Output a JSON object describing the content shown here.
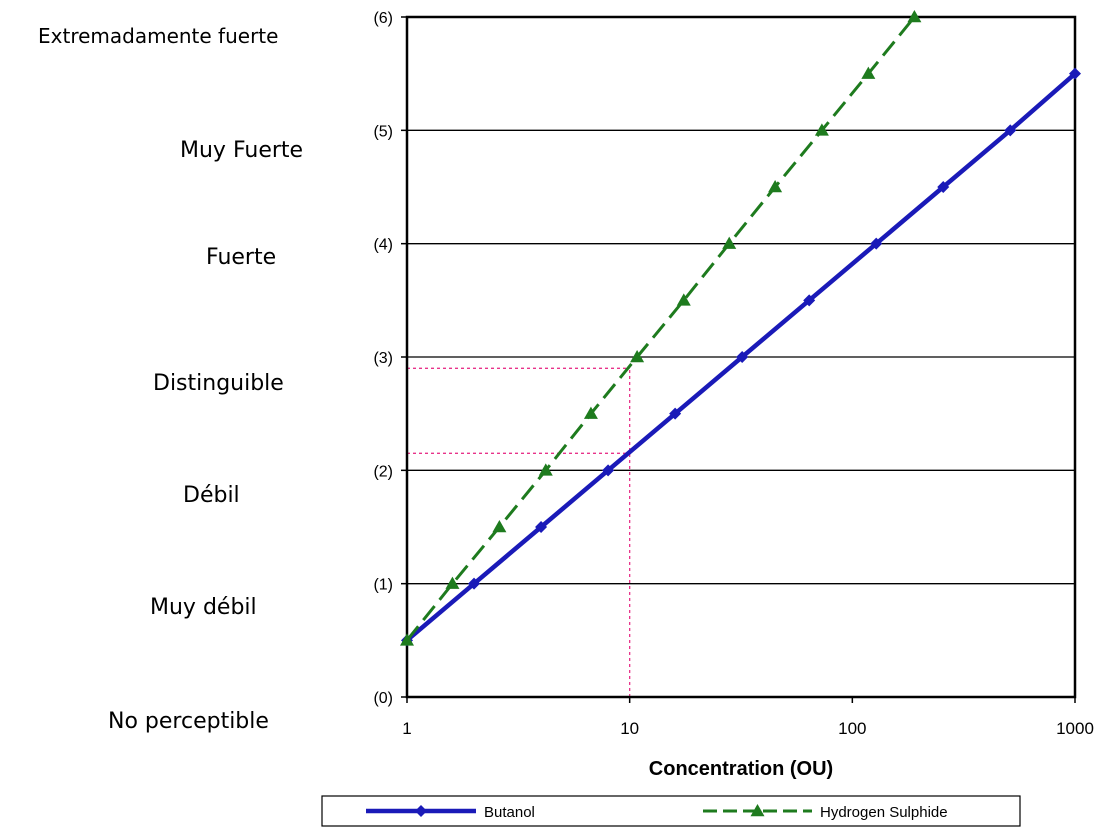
{
  "chart_data": {
    "type": "line",
    "xlabel": "Concentration (OU)",
    "ylabel": "",
    "xscale": "log",
    "xlim": [
      1,
      1000
    ],
    "ylim": [
      0,
      6
    ],
    "x_ticks": [
      {
        "value": 1,
        "label": "1"
      },
      {
        "value": 10,
        "label": "10"
      },
      {
        "value": 100,
        "label": "100"
      },
      {
        "value": 1000,
        "label": "1000"
      }
    ],
    "y_ticks": [
      {
        "value": 0,
        "label": "(0)"
      },
      {
        "value": 1,
        "label": "(1)"
      },
      {
        "value": 2,
        "label": "(2)"
      },
      {
        "value": 3,
        "label": "(3)"
      },
      {
        "value": 4,
        "label": "(4)"
      },
      {
        "value": 5,
        "label": "(5)"
      },
      {
        "value": 6,
        "label": "(6)"
      }
    ],
    "intensity_labels": [
      {
        "value": 0,
        "label": "No perceptible"
      },
      {
        "value": 1,
        "label": "Muy débil"
      },
      {
        "value": 2,
        "label": "Débil"
      },
      {
        "value": 3,
        "label": "Distinguible"
      },
      {
        "value": 4,
        "label": "Fuerte"
      },
      {
        "value": 5,
        "label": "Muy Fuerte"
      },
      {
        "value": 6,
        "label": "Extremadamente fuerte"
      }
    ],
    "grid": "horizontal",
    "legend_position": "bottom",
    "series": [
      {
        "name": "Butanol",
        "color": "#1a1ab8",
        "marker": "diamond",
        "line_style": "solid",
        "points": [
          {
            "x": 1,
            "y": 0.5
          },
          {
            "x": 2,
            "y": 1.0
          },
          {
            "x": 4,
            "y": 1.5
          },
          {
            "x": 8,
            "y": 2.0
          },
          {
            "x": 16,
            "y": 2.5
          },
          {
            "x": 32,
            "y": 3.0
          },
          {
            "x": 64,
            "y": 3.5
          },
          {
            "x": 128,
            "y": 4.0
          },
          {
            "x": 256,
            "y": 4.5
          },
          {
            "x": 512,
            "y": 5.0
          },
          {
            "x": 1000,
            "y": 5.5
          }
        ]
      },
      {
        "name": "Hydrogen Sulphide",
        "color": "#1e7b1e",
        "marker": "triangle",
        "line_style": "dashed",
        "points": [
          {
            "x": 1,
            "y": 0.5
          },
          {
            "x": 1.6,
            "y": 1.0
          },
          {
            "x": 2.6,
            "y": 1.5
          },
          {
            "x": 4.2,
            "y": 2.0
          },
          {
            "x": 6.7,
            "y": 2.5
          },
          {
            "x": 10.8,
            "y": 3.0
          },
          {
            "x": 17.5,
            "y": 3.5
          },
          {
            "x": 28,
            "y": 4.0
          },
          {
            "x": 45,
            "y": 4.5
          },
          {
            "x": 73,
            "y": 5.0
          },
          {
            "x": 118,
            "y": 5.5
          },
          {
            "x": 190,
            "y": 6.0
          }
        ]
      }
    ],
    "reference_lines": {
      "color": "#e8338a",
      "x": 10,
      "y_values": [
        2.15,
        2.9
      ]
    }
  }
}
